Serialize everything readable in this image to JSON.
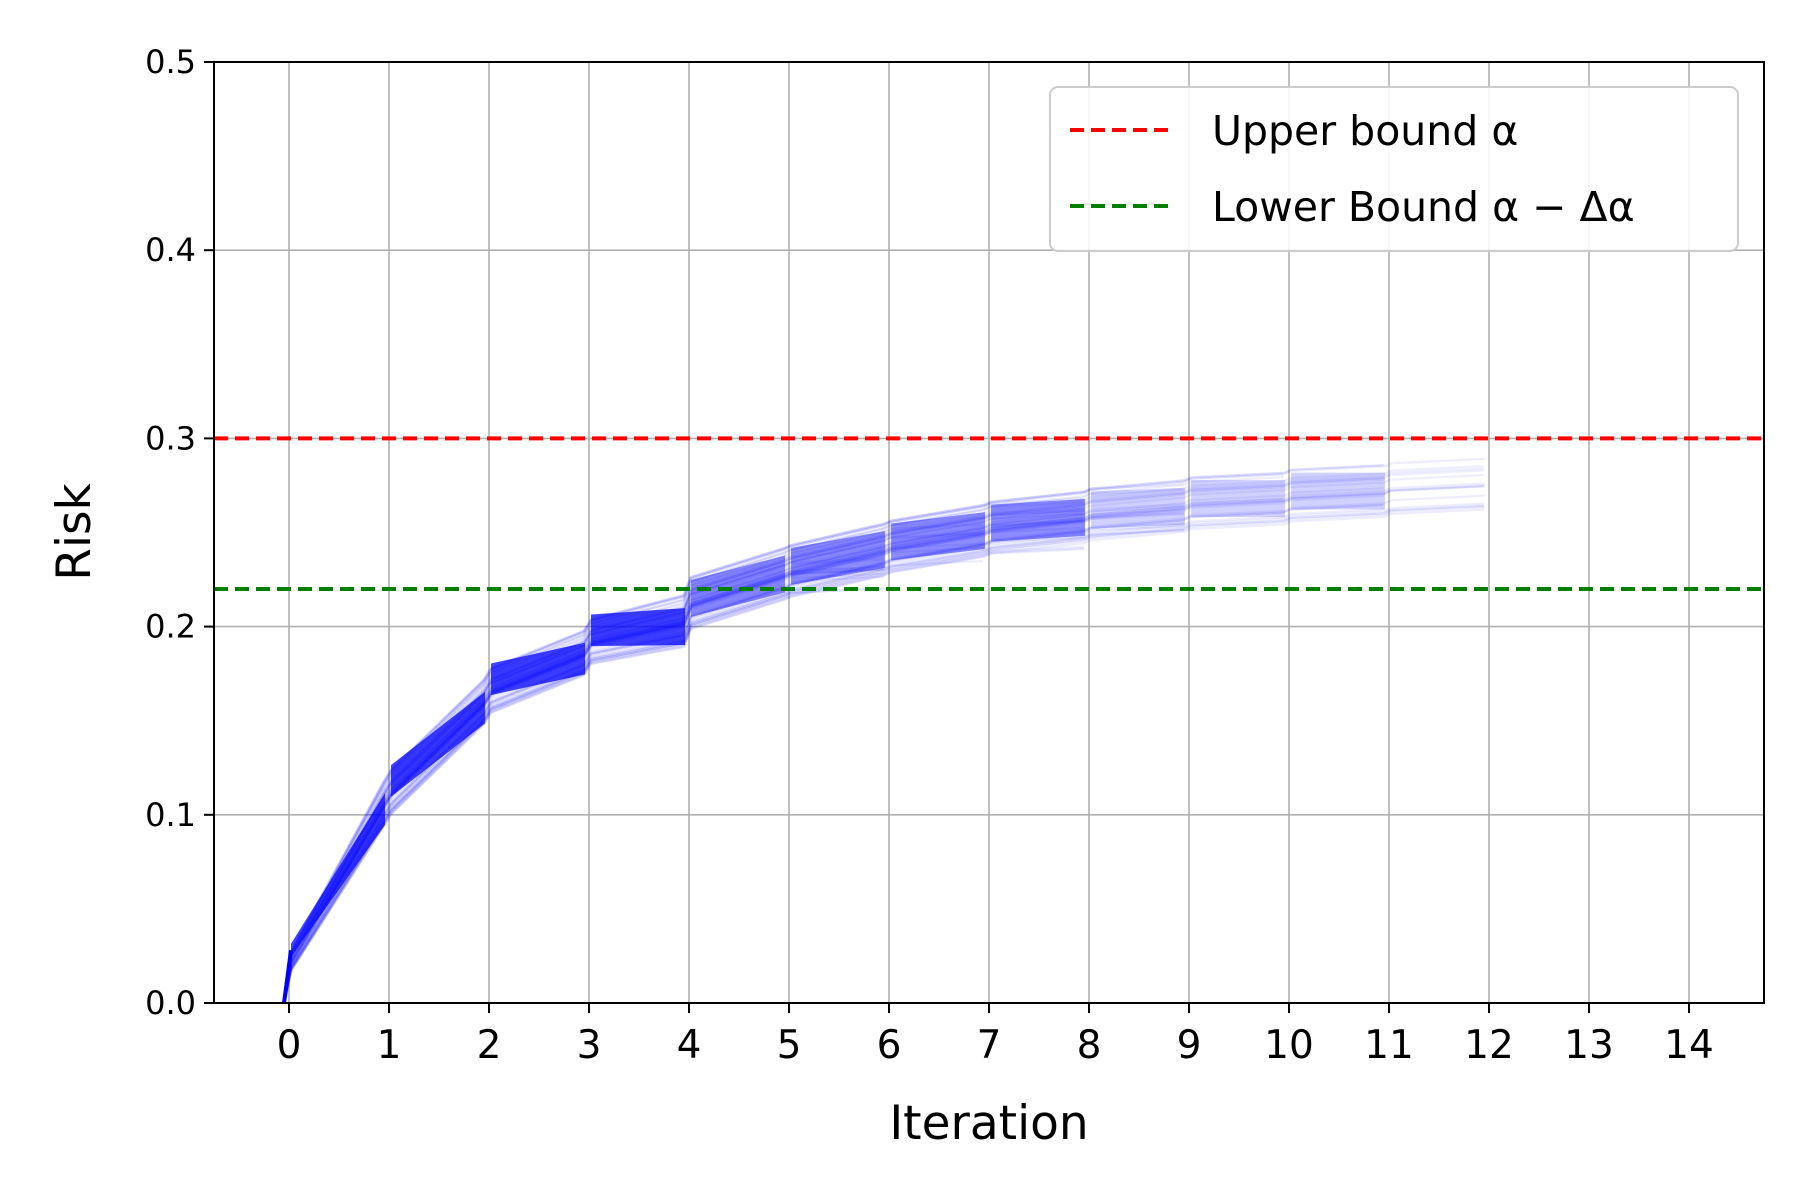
{
  "chart_data": {
    "type": "line",
    "xlabel": "Iteration",
    "ylabel": "Risk",
    "xlim": [
      -0.75,
      14.75
    ],
    "ylim": [
      0,
      0.5
    ],
    "x_ticks": [
      "0",
      "1",
      "2",
      "3",
      "4",
      "5",
      "6",
      "7",
      "8",
      "9",
      "10",
      "11",
      "12",
      "13",
      "14"
    ],
    "y_ticks": [
      "0.0",
      "0.1",
      "0.2",
      "0.3",
      "0.4",
      "0.5"
    ],
    "grid": true,
    "legend_position": "top-right",
    "reference_lines": [
      {
        "name": "Upper bound α",
        "y": 0.3,
        "color": "#ff0000",
        "style": "dashed"
      },
      {
        "name": "Lower Bound α − Δα",
        "y": 0.22,
        "color": "#008000",
        "style": "dashed"
      }
    ],
    "trajectories": {
      "color": "#0000ff",
      "description_points": [
        {
          "x": 0,
          "y_mean": 0.028,
          "y_spread": 0.005
        },
        {
          "x": 1,
          "y_mean": 0.118,
          "y_spread": 0.012
        },
        {
          "x": 2,
          "y_mean": 0.172,
          "y_spread": 0.012
        },
        {
          "x": 3,
          "y_mean": 0.198,
          "y_spread": 0.012
        },
        {
          "x": 4,
          "y_mean": 0.215,
          "y_spread": 0.014
        },
        {
          "x": 5,
          "y_mean": 0.232,
          "y_spread": 0.014
        },
        {
          "x": 6,
          "y_mean": 0.245,
          "y_spread": 0.014
        },
        {
          "x": 7,
          "y_mean": 0.255,
          "y_spread": 0.014
        },
        {
          "x": 8,
          "y_mean": 0.262,
          "y_spread": 0.014
        },
        {
          "x": 9,
          "y_mean": 0.268,
          "y_spread": 0.014
        },
        {
          "x": 10,
          "y_mean": 0.272,
          "y_spread": 0.014
        },
        {
          "x": 11,
          "y_mean": 0.276,
          "y_spread": 0.014
        }
      ]
    }
  }
}
